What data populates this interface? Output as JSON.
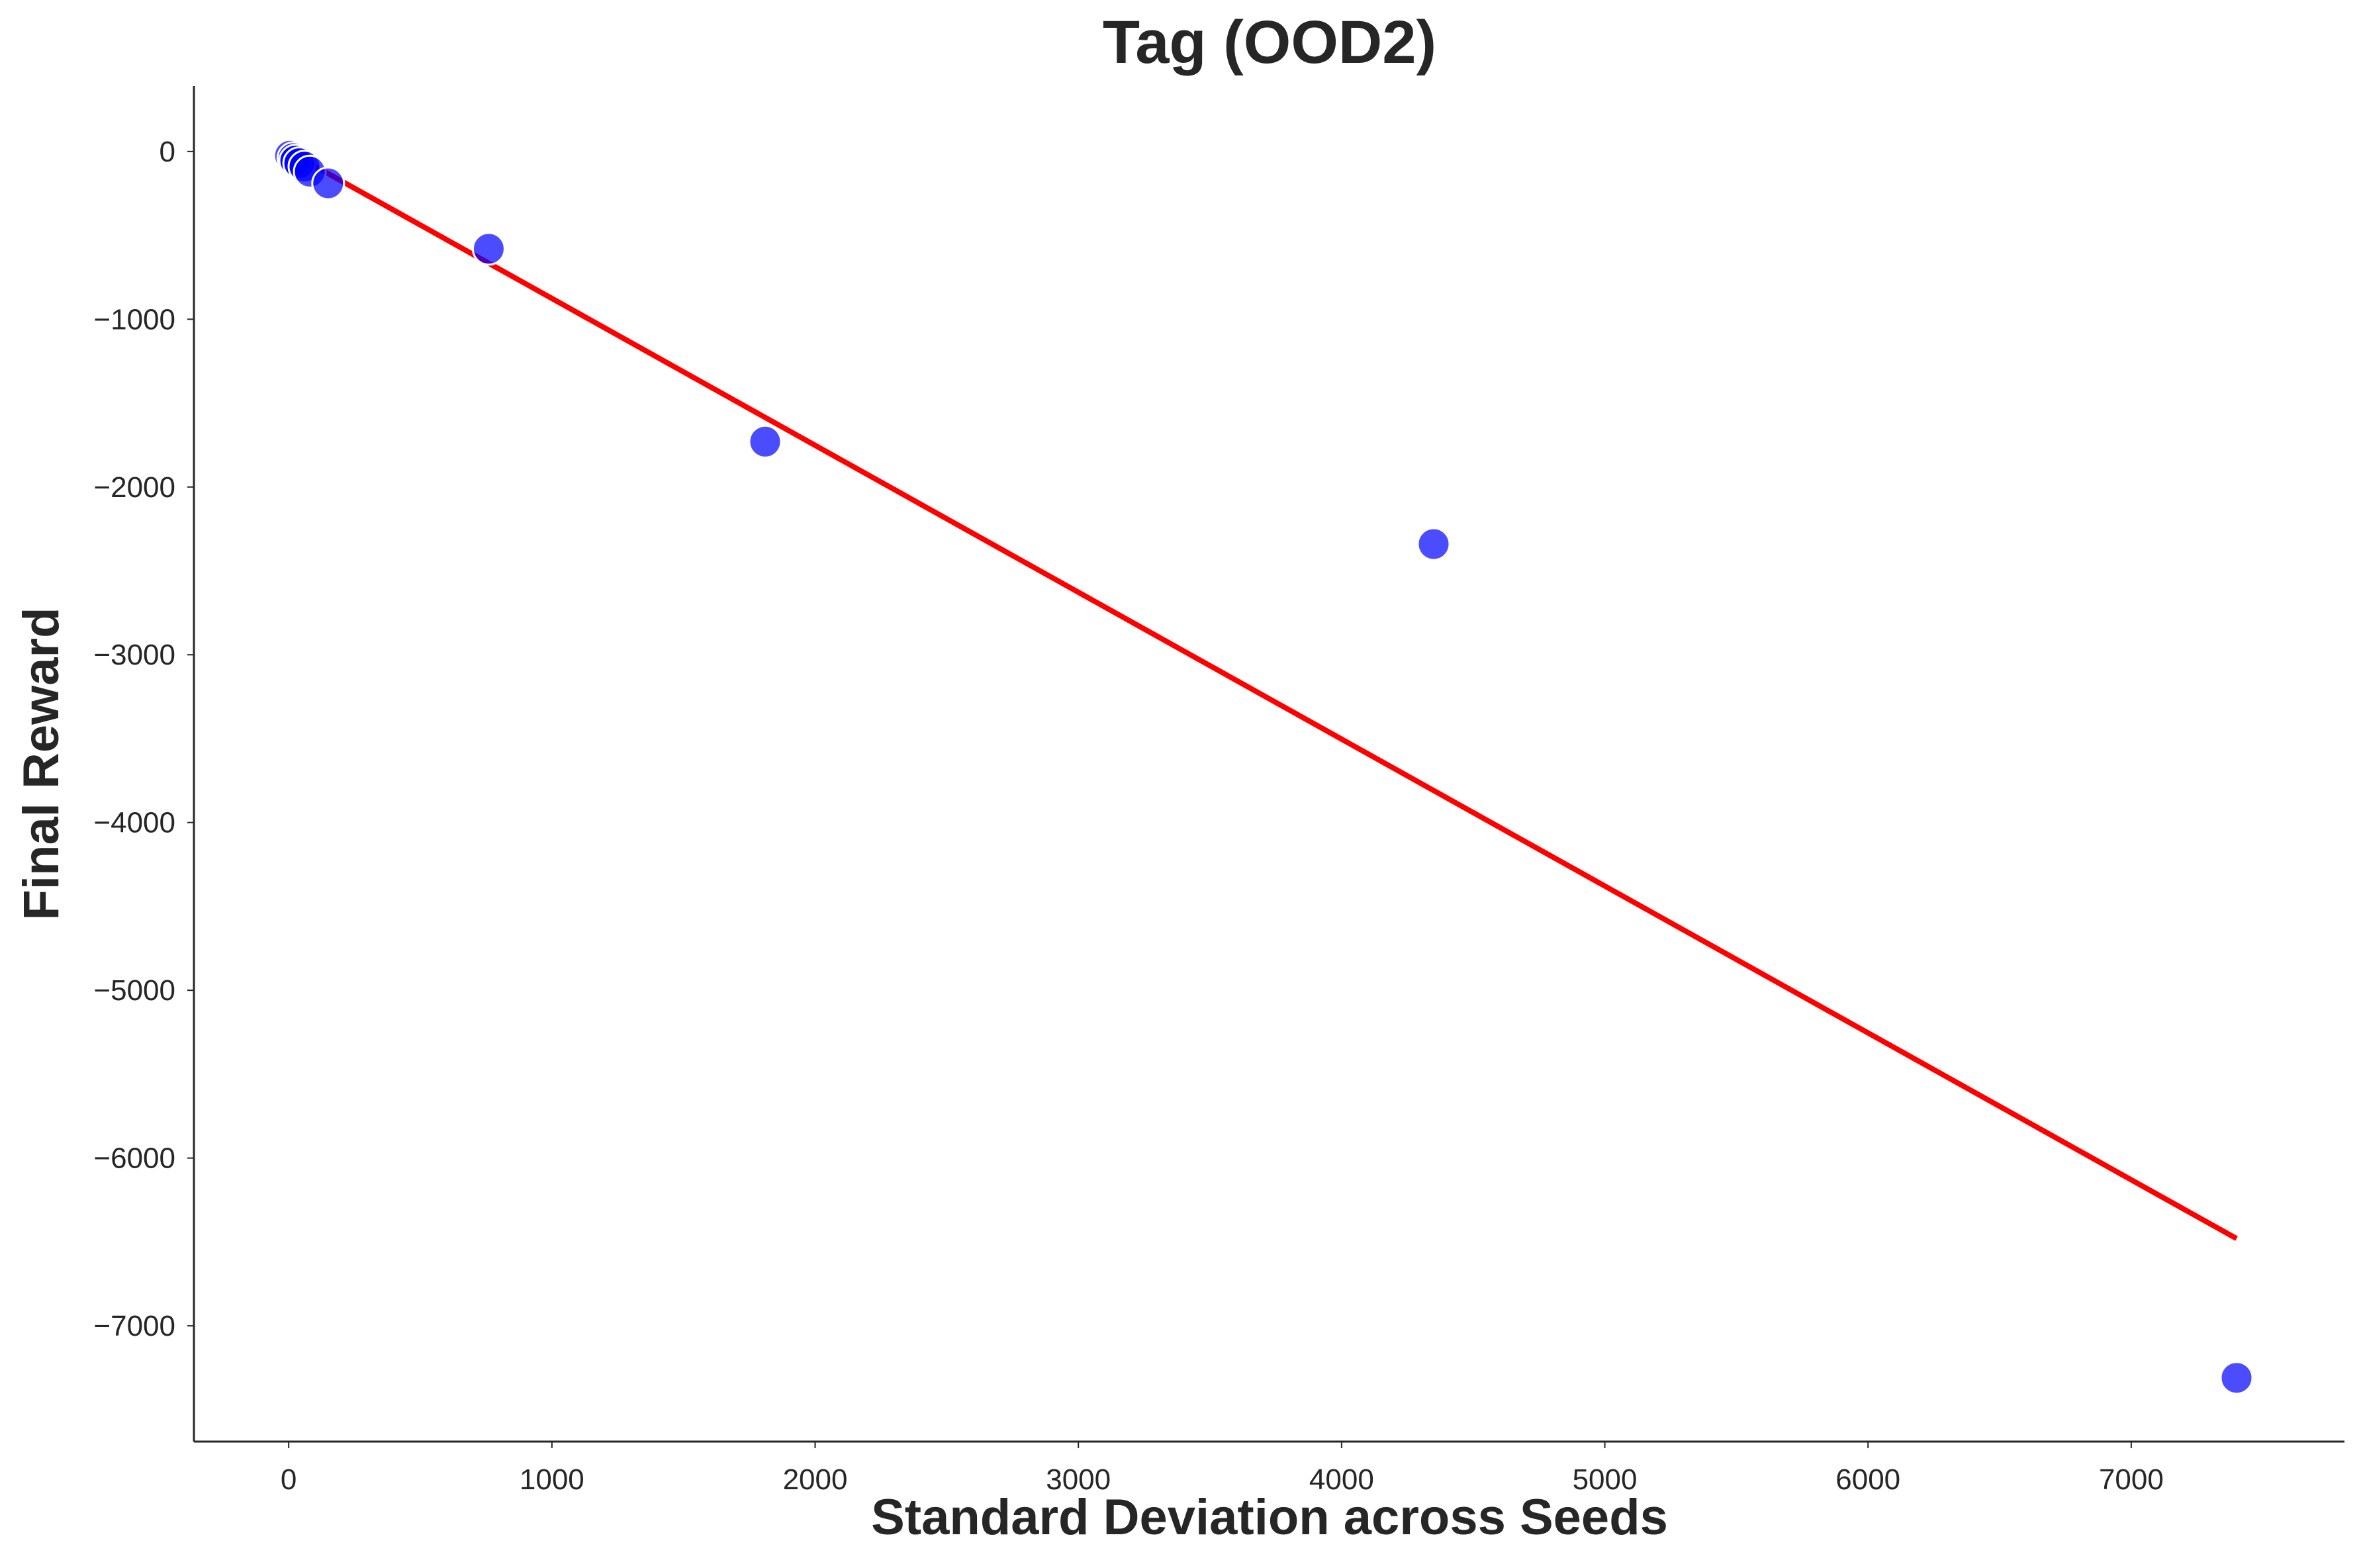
{
  "chart_data": {
    "type": "scatter",
    "title": "Tag (OOD2)",
    "xlabel": "Standard Deviation across Seeds",
    "ylabel": "Final Reward",
    "xlim": [
      -360,
      7810
    ],
    "ylim": [
      -7690,
      390
    ],
    "xticks": [
      0,
      1000,
      2000,
      3000,
      4000,
      5000,
      6000,
      7000
    ],
    "yticks": [
      0,
      -1000,
      -2000,
      -3000,
      -4000,
      -5000,
      -6000,
      -7000
    ],
    "xtick_labels": [
      "0",
      "1000",
      "2000",
      "3000",
      "4000",
      "5000",
      "6000",
      "7000"
    ],
    "ytick_labels": [
      "0",
      "−1000",
      "−2000",
      "−3000",
      "−4000",
      "−5000",
      "−6000",
      "−7000"
    ],
    "grid": false,
    "series": [
      {
        "type": "scatter",
        "color": "#0000ff",
        "points": [
          {
            "x": 5,
            "y": -25
          },
          {
            "x": 18,
            "y": -40
          },
          {
            "x": 25,
            "y": -55
          },
          {
            "x": 40,
            "y": -70
          },
          {
            "x": 60,
            "y": -90
          },
          {
            "x": 80,
            "y": -120
          },
          {
            "x": 150,
            "y": -190
          },
          {
            "x": 760,
            "y": -580
          },
          {
            "x": 1810,
            "y": -1730
          },
          {
            "x": 4350,
            "y": -2340
          },
          {
            "x": 7400,
            "y": -7310
          }
        ]
      },
      {
        "type": "line",
        "color": "#ff0000",
        "points": [
          {
            "x": 5,
            "y": -5
          },
          {
            "x": 7400,
            "y": -6480
          }
        ]
      }
    ]
  }
}
